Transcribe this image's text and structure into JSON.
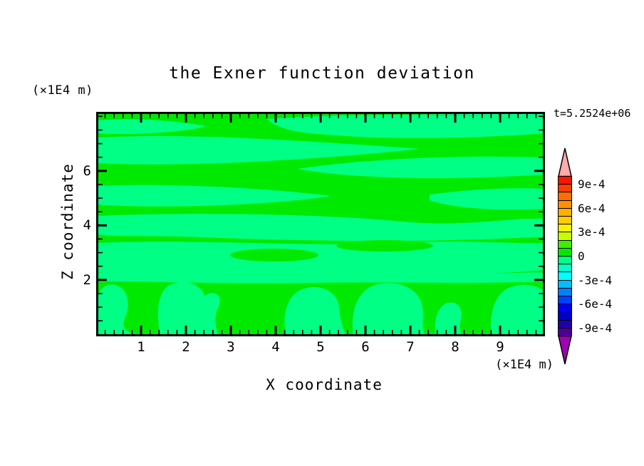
{
  "title": "the Exner function deviation",
  "top_left_unit": "(×1E4 m)",
  "time_label": "t=5.2524e+06",
  "x_axis": {
    "label": "X coordinate",
    "unit": "(×1E4 m)",
    "tick_labels": [
      "1",
      "2",
      "3",
      "4",
      "5",
      "6",
      "7",
      "8",
      "9"
    ]
  },
  "y_axis": {
    "label": "Z coordinate",
    "tick_labels": [
      "6",
      "4",
      "2"
    ]
  },
  "colorbar": {
    "labels": [
      "9e-4",
      "6e-4",
      "3e-4",
      "0",
      "-3e-4",
      "-6e-4",
      "-9e-4"
    ],
    "band_colors": [
      "#FF1400",
      "#FF3C00",
      "#FF6E00",
      "#FF9100",
      "#FFAF00",
      "#FFCD00",
      "#FFF000",
      "#C8FF00",
      "#3CF000",
      "#00E900",
      "#00FF85",
      "#00FFC8",
      "#00FFFF",
      "#00BEFF",
      "#0082FF",
      "#0041FF",
      "#0000F0",
      "#0000C8",
      "#1E00AA",
      "#4B0096"
    ],
    "over_color": "#FFAAAA",
    "under_color": "#A000B4"
  },
  "chart_data": {
    "type": "contour",
    "title": "the Exner function deviation",
    "xlabel": "X coordinate",
    "ylabel": "Z coordinate",
    "x_unit": "(×1E4 m)",
    "y_unit": "(×1E4 m)",
    "time_annotation": "t=5.2524e+06",
    "xlim": [
      0,
      10
    ],
    "ylim": [
      0,
      8.2
    ],
    "x_major_ticks": [
      1,
      2,
      3,
      4,
      5,
      6,
      7,
      8,
      9
    ],
    "x_minor_step": 0.2,
    "y_major_ticks": [
      2,
      4,
      6
    ],
    "y_minor_step": 0.5,
    "contour_interval": 0.0001,
    "colorbar_tick_values": [
      0.0009,
      0.0006,
      0.0003,
      0,
      -0.0003,
      -0.0006,
      -0.0009
    ],
    "colorbar_range": [
      -0.001,
      0.001
    ],
    "field_range_visible": [
      -0.0001,
      0.0001
    ],
    "positive_band_color": "#00E900",
    "negative_band_color": "#00FF85",
    "grid": false,
    "legend_position": "right colorbar with over/under arrows",
    "pattern_note": "Field stays within ±1e-4: wavy horizontal layers alternate between the 0..1e-4 band (green) and the -1e-4..0 band (spring green); below z≈2 the spring-green regions form vertical plume-like columns reaching the bottom boundary."
  }
}
